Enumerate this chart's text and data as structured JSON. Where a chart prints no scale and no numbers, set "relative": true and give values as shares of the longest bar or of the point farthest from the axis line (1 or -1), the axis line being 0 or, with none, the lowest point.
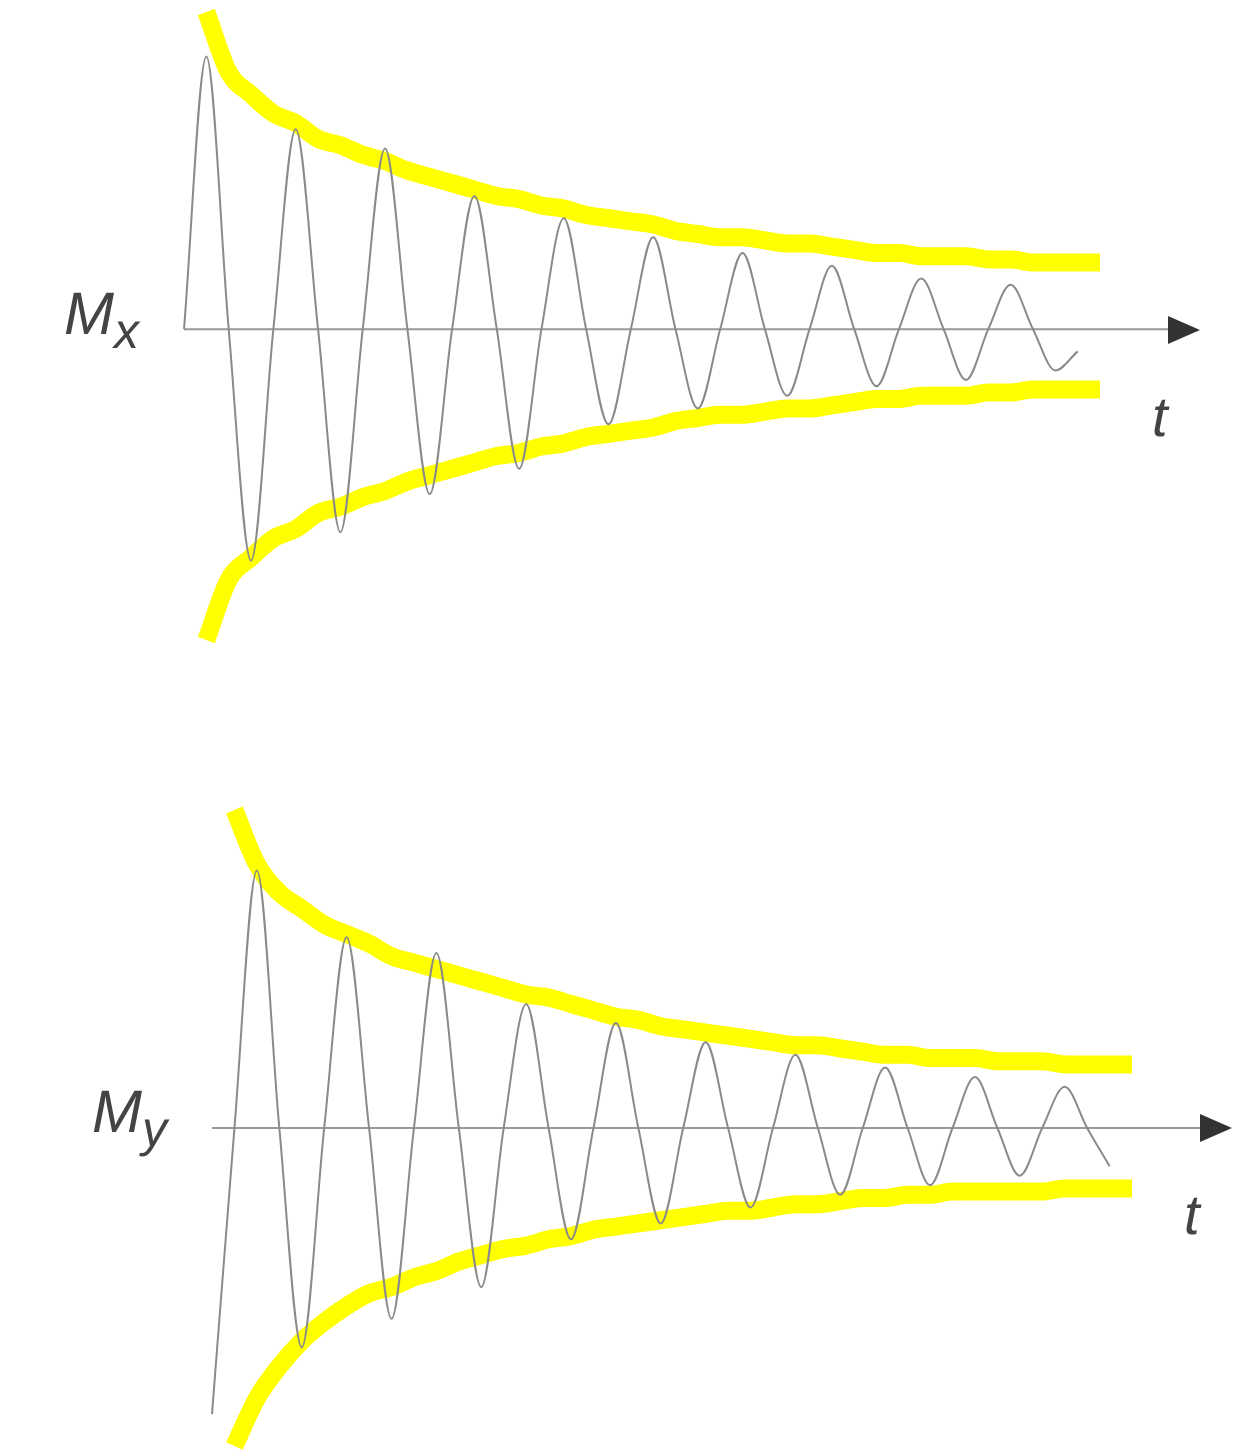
{
  "chart_data": [
    {
      "type": "line",
      "relative": true,
      "xlabel": "t",
      "ylabel": "M$_{x}$",
      "categories": [
        null,
        null,
        null,
        null,
        null,
        null,
        null,
        null,
        null,
        null,
        null,
        null,
        null,
        null,
        null,
        null,
        null,
        null,
        null,
        null,
        null,
        null,
        null,
        null,
        null,
        null,
        null,
        null,
        null,
        null,
        null,
        null,
        null,
        null,
        null,
        null,
        null,
        null,
        null,
        null,
        null,
        null
      ],
      "series": [
        {
          "color": "#8a8a8a",
          "values": [
            0,
            0.86,
            0,
            -0.73,
            0,
            0.63,
            0,
            -0.64,
            0,
            0.57,
            0,
            -0.52,
            0,
            0.42,
            0,
            -0.44,
            0,
            0.35,
            0,
            -0.3,
            0,
            0.29,
            0,
            -0.25,
            0,
            0.24,
            0,
            -0.21,
            0,
            0.2,
            0,
            -0.18,
            0,
            0.16,
            0,
            -0.16,
            0,
            0.14,
            0,
            -0.13,
            -0.07,
            null
          ]
        },
        {
          "color": "#ffff00",
          "values": [
            null,
            1.0,
            0.81,
            0.74,
            0.68,
            0.65,
            0.6,
            0.58,
            0.55,
            0.53,
            0.5,
            0.48,
            0.46,
            0.44,
            0.42,
            0.41,
            0.39,
            0.38,
            0.36,
            0.35,
            0.34,
            0.33,
            0.31,
            0.3,
            0.29,
            0.29,
            0.28,
            0.27,
            0.27,
            0.26,
            0.25,
            0.24,
            0.24,
            0.23,
            0.23,
            0.23,
            0.22,
            0.22,
            0.21,
            0.21,
            0.21,
            0.21
          ]
        },
        {
          "color": "#ffff00",
          "values": [
            null,
            -0.98,
            -0.79,
            -0.72,
            -0.66,
            -0.63,
            -0.58,
            -0.56,
            -0.53,
            -0.51,
            -0.48,
            -0.46,
            -0.44,
            -0.42,
            -0.4,
            -0.39,
            -0.37,
            -0.36,
            -0.34,
            -0.33,
            -0.32,
            -0.31,
            -0.29,
            -0.28,
            -0.27,
            -0.27,
            -0.26,
            -0.25,
            -0.25,
            -0.24,
            -0.23,
            -0.22,
            -0.22,
            -0.21,
            -0.21,
            -0.21,
            -0.2,
            -0.2,
            -0.19,
            -0.19,
            -0.19,
            -0.19
          ]
        }
      ]
    },
    {
      "type": "line",
      "relative": true,
      "xlabel": "t",
      "ylabel": "M$_{y}$",
      "categories": [
        null,
        null,
        null,
        null,
        null,
        null,
        null,
        null,
        null,
        null,
        null,
        null,
        null,
        null,
        null,
        null,
        null,
        null,
        null,
        null,
        null,
        null,
        null,
        null,
        null,
        null,
        null,
        null,
        null,
        null,
        null,
        null,
        null,
        null,
        null,
        null,
        null,
        null,
        null,
        null,
        null,
        null
      ],
      "series": [
        {
          "color": "#8a8a8a",
          "values": [
            -0.9,
            0,
            0.81,
            0,
            -0.69,
            0,
            0.6,
            0,
            -0.6,
            0,
            0.55,
            0,
            -0.5,
            0,
            0.39,
            0,
            -0.35,
            0,
            0.33,
            0,
            -0.3,
            0,
            0.27,
            0,
            -0.25,
            0,
            0.23,
            0,
            -0.21,
            0,
            0.19,
            0,
            -0.18,
            0,
            0.16,
            0,
            -0.15,
            0,
            0.13,
            0,
            -0.12,
            null
          ]
        },
        {
          "color": "#ffff00",
          "values": [
            null,
            1.0,
            0.83,
            0.74,
            0.69,
            0.64,
            0.61,
            0.58,
            0.54,
            0.52,
            0.5,
            0.48,
            0.46,
            0.44,
            0.42,
            0.41,
            0.39,
            0.37,
            0.35,
            0.34,
            0.32,
            0.31,
            0.3,
            0.29,
            0.28,
            0.27,
            0.26,
            0.26,
            0.25,
            0.24,
            0.23,
            0.23,
            0.22,
            0.22,
            0.22,
            0.21,
            0.21,
            0.21,
            0.2,
            0.2,
            0.2,
            0.2
          ]
        },
        {
          "color": "#ffff00",
          "values": [
            null,
            -1.0,
            -0.85,
            -0.75,
            -0.67,
            -0.61,
            -0.56,
            -0.52,
            -0.5,
            -0.47,
            -0.45,
            -0.42,
            -0.4,
            -0.38,
            -0.37,
            -0.35,
            -0.34,
            -0.32,
            -0.31,
            -0.3,
            -0.29,
            -0.28,
            -0.27,
            -0.26,
            -0.26,
            -0.25,
            -0.24,
            -0.24,
            -0.23,
            -0.22,
            -0.22,
            -0.21,
            -0.21,
            -0.2,
            -0.2,
            -0.2,
            -0.2,
            -0.2,
            -0.19,
            -0.19,
            -0.19,
            -0.19
          ]
        }
      ]
    }
  ]
}
